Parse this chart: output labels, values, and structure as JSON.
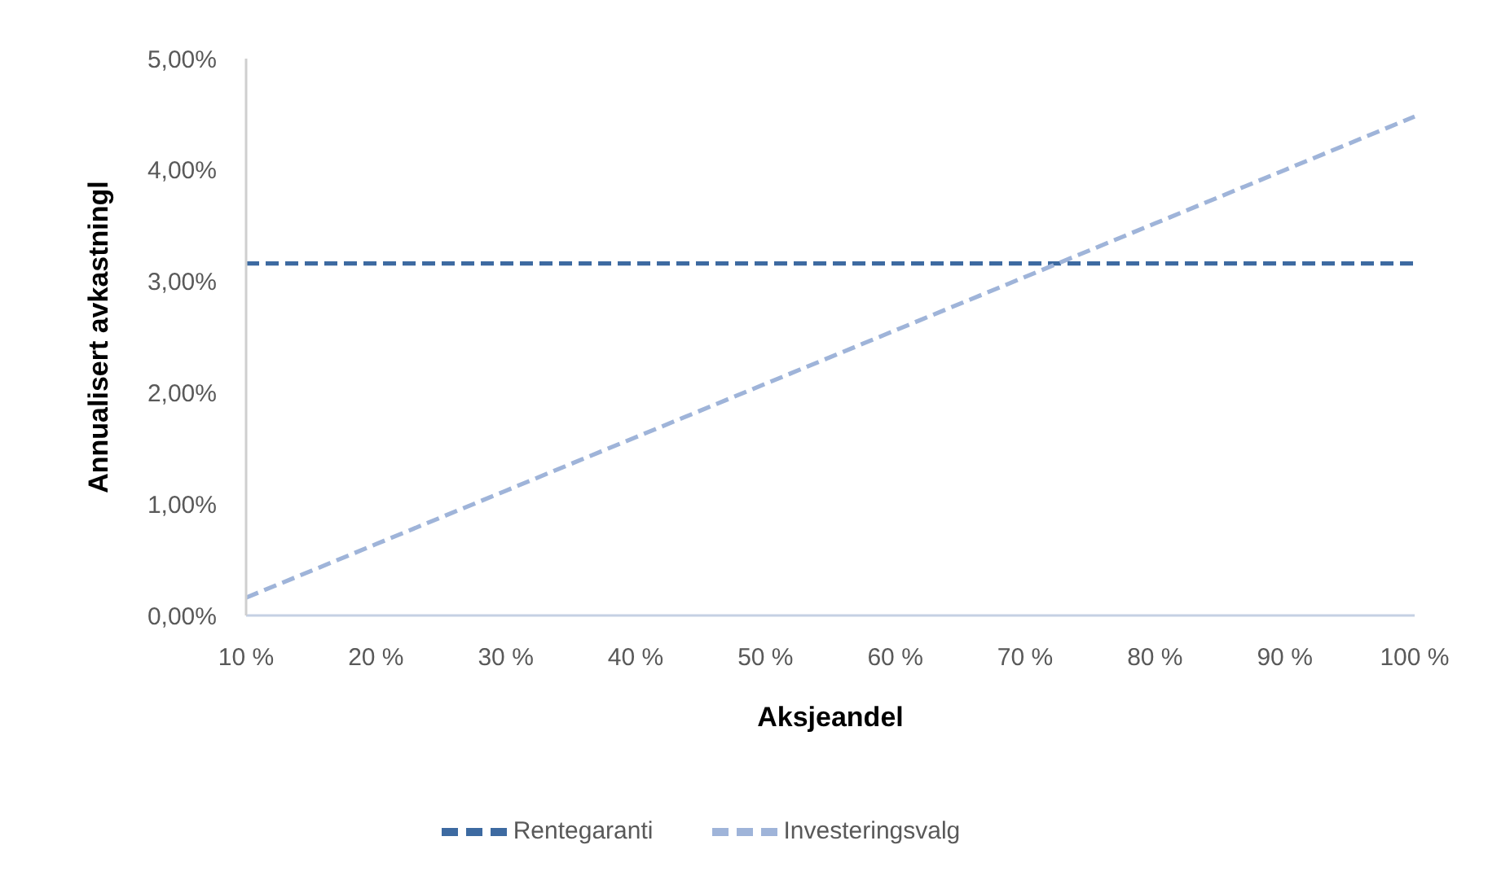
{
  "chart_data": {
    "type": "line",
    "xlabel": "Aksjeandel",
    "ylabel": "Annualisert avkastningl",
    "categories": [
      "10 %",
      "20 %",
      "30 %",
      "40 %",
      "50 %",
      "60 %",
      "70 %",
      "80 %",
      "90 %",
      "100 %"
    ],
    "series": [
      {
        "name": "Rentegaranti",
        "color": "#3d6aa1",
        "values": [
          3.16,
          3.16,
          3.16,
          3.16,
          3.16,
          3.16,
          3.16,
          3.16,
          3.16,
          3.16
        ]
      },
      {
        "name": "Investeringsvalg",
        "color": "#9fb4d9",
        "values": [
          0.16,
          0.64,
          1.12,
          1.6,
          2.08,
          2.56,
          3.04,
          3.52,
          4.0,
          4.48
        ]
      }
    ],
    "ylim": [
      0,
      5
    ],
    "yticks": [
      {
        "value": 0,
        "label": "0,00%"
      },
      {
        "value": 1,
        "label": "1,00%"
      },
      {
        "value": 2,
        "label": "2,00%"
      },
      {
        "value": 3,
        "label": "3,00%"
      },
      {
        "value": 4,
        "label": "4,00%"
      },
      {
        "value": 5,
        "label": "5,00%"
      }
    ],
    "grid": false,
    "legend": "bottom",
    "marker": "none",
    "line_style": "dashed"
  }
}
